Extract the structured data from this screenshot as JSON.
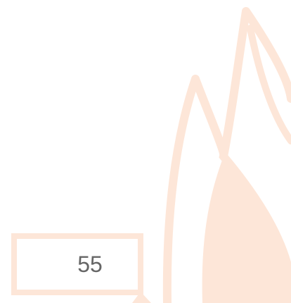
{
  "value_box": {
    "text": "55"
  }
}
